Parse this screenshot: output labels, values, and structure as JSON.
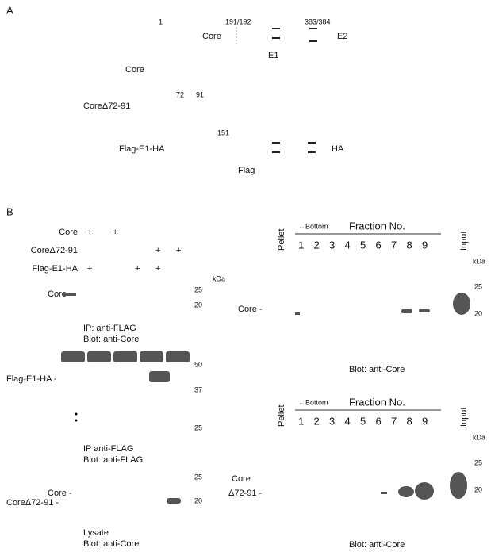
{
  "panel_a": {
    "label": "A",
    "numbers": [
      "1",
      "191/192",
      "383/384",
      "72",
      "91",
      "151"
    ],
    "core_region": "Core",
    "e1": "E1",
    "e2": "E2",
    "constructs": [
      "Core",
      "CoreΔ72-91",
      "Flag-E1-HA"
    ],
    "ha": "HA",
    "flag": "Flag"
  },
  "panel_b": {
    "label": "B",
    "left": {
      "rows": [
        "Core",
        "CoreΔ72-91",
        "Flag-E1-HA"
      ],
      "plus": "+",
      "kda": "kDa",
      "markers": [
        "25",
        "20",
        "50",
        "37",
        "25",
        "25",
        "20"
      ],
      "band_labels": [
        "Core -",
        "Flag-E1-HA -",
        "Core -",
        "CoreΔ72-91 -"
      ],
      "captions": [
        [
          "IP: anti-FLAG",
          "Blot: anti-Core"
        ],
        [
          "IP anti-FLAG",
          "Blot: anti-FLAG"
        ],
        [
          "Lysate",
          "Blot: anti-Core"
        ]
      ]
    },
    "right_top": {
      "pellet": "Pellet",
      "bottom": "←Bottom",
      "fraction": "Fraction No.",
      "input": "Input",
      "fractions": [
        "1",
        "2",
        "3",
        "4",
        "5",
        "6",
        "7",
        "8",
        "9"
      ],
      "kda": "kDa",
      "markers": [
        "25",
        "20"
      ],
      "band_label": "Core -",
      "caption": "Blot: anti-Core"
    },
    "right_bottom": {
      "pellet": "Pellet",
      "bottom": "←Bottom",
      "fraction": "Fraction No.",
      "input": "Input",
      "fractions": [
        "1",
        "2",
        "3",
        "4",
        "5",
        "6",
        "7",
        "8",
        "9"
      ],
      "kda": "kDa",
      "markers": [
        "25",
        "20"
      ],
      "band_label": [
        "Core",
        "Δ72-91 -"
      ],
      "caption": "Blot: anti-Core"
    }
  }
}
